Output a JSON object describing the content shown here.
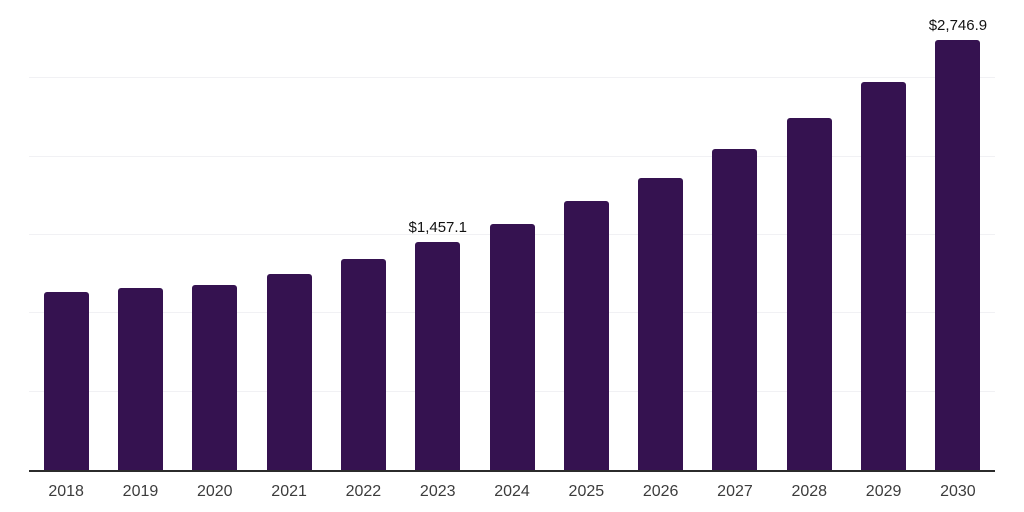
{
  "chart_data": {
    "type": "bar",
    "title": "",
    "xlabel": "",
    "ylabel": "",
    "categories": [
      "2018",
      "2019",
      "2020",
      "2021",
      "2022",
      "2023",
      "2024",
      "2025",
      "2026",
      "2027",
      "2028",
      "2029",
      "2030"
    ],
    "values": [
      1139,
      1164,
      1182,
      1252,
      1348,
      1457.1,
      1569,
      1718,
      1863,
      2048,
      2246,
      2478,
      2746.9
    ],
    "data_labels": {
      "2023": "$1,457.1",
      "2030": "$2,746.9"
    },
    "ylim": [
      0,
      3000
    ],
    "gridline_step": 500,
    "grid": true,
    "legend_position": "none"
  },
  "style": {
    "bar_color": "#351250",
    "grid_color": "#f1f1f4",
    "axis_color": "#2b2b2b",
    "value_label_color": "#121212",
    "tick_label_color": "#3c3c3c",
    "background_color": "#ffffff"
  }
}
